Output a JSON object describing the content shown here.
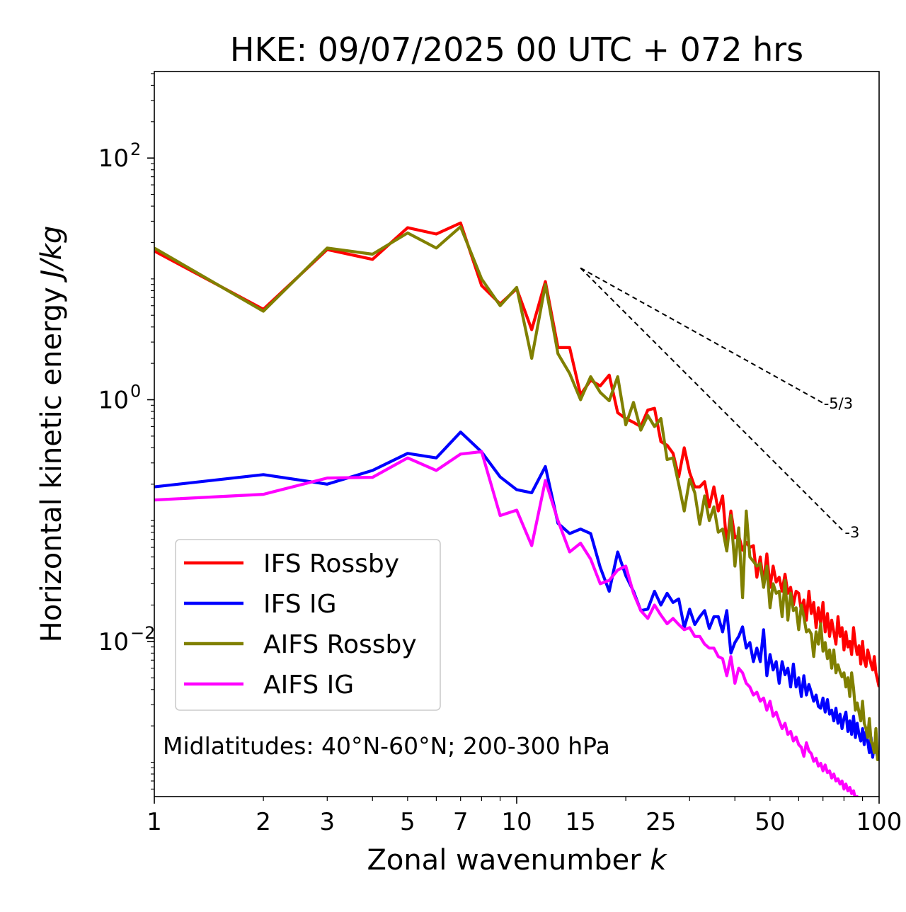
{
  "chart_data": {
    "type": "line",
    "title": "HKE: 09/07/2025 00 UTC + 072 hrs",
    "xlabel_main": "Zonal wavenumber ",
    "xlabel_var": "k",
    "ylabel_main": "Horizontal kinetic energy ",
    "ylabel_unit": "J/kg",
    "xscale": "log",
    "yscale": "log",
    "xlim": [
      1,
      100
    ],
    "ylim": [
      0.00052,
      520
    ],
    "x_ticks": [
      {
        "value": 1,
        "label": "1"
      },
      {
        "value": 2,
        "label": "2"
      },
      {
        "value": 3,
        "label": "3"
      },
      {
        "value": 5,
        "label": "5"
      },
      {
        "value": 7,
        "label": "7"
      },
      {
        "value": 10,
        "label": "10"
      },
      {
        "value": 15,
        "label": "15"
      },
      {
        "value": 25,
        "label": "25"
      },
      {
        "value": 50,
        "label": "50"
      },
      {
        "value": 100,
        "label": "100"
      }
    ],
    "y_ticks": [
      {
        "value": 0.01,
        "base": "10",
        "exp": "−2"
      },
      {
        "value": 1,
        "base": "10",
        "exp": "0"
      },
      {
        "value": 100,
        "base": "10",
        "exp": "2"
      }
    ],
    "annotation": "Midlatitudes: 40°N-60°N; 200-300 hPa",
    "legend_position": "lower-left",
    "series": [
      {
        "name": "IFS Rossby",
        "color": "#ff0000",
        "x": [
          1,
          2,
          3,
          4,
          5,
          6,
          7,
          8,
          9,
          10,
          11,
          12,
          13,
          14,
          15,
          16,
          17,
          18,
          19,
          20,
          21,
          22,
          23,
          24,
          25,
          26,
          27,
          28,
          29,
          30,
          31,
          32,
          33,
          34,
          35,
          36,
          37,
          38,
          39,
          40,
          41,
          42,
          43,
          44,
          45,
          46,
          47,
          48,
          49,
          50,
          51,
          52,
          53,
          54,
          55,
          56,
          57,
          58,
          59,
          60,
          61,
          62,
          63,
          64,
          65,
          66,
          67,
          68,
          69,
          70,
          71,
          72,
          73,
          74,
          75,
          76,
          77,
          78,
          79,
          80,
          81,
          82,
          83,
          84,
          85,
          86,
          87,
          88,
          89,
          90,
          91,
          92,
          93,
          94,
          95,
          96,
          97,
          98,
          99,
          100
        ],
        "values": [
          17,
          5.6,
          17.5,
          14.5,
          26.5,
          23.5,
          29,
          8.8,
          6.2,
          8.3,
          3.8,
          9.5,
          2.7,
          2.7,
          1.1,
          1.45,
          1.3,
          1.6,
          0.78,
          0.7,
          0.65,
          0.6,
          0.82,
          0.85,
          0.45,
          0.42,
          0.36,
          0.23,
          0.4,
          0.25,
          0.19,
          0.19,
          0.21,
          0.13,
          0.19,
          0.12,
          0.16,
          0.063,
          0.12,
          0.072,
          0.075,
          0.057,
          0.066,
          0.06,
          0.062,
          0.034,
          0.05,
          0.03,
          0.053,
          0.028,
          0.042,
          0.031,
          0.034,
          0.026,
          0.036,
          0.025,
          0.028,
          0.02,
          0.026,
          0.025,
          0.018,
          0.022,
          0.015,
          0.026,
          0.017,
          0.021,
          0.013,
          0.019,
          0.014,
          0.021,
          0.012,
          0.017,
          0.011,
          0.015,
          0.012,
          0.0095,
          0.016,
          0.011,
          0.013,
          0.0085,
          0.012,
          0.009,
          0.01,
          0.0078,
          0.013,
          0.0095,
          0.0078,
          0.0092,
          0.0065,
          0.01,
          0.007,
          0.0062,
          0.0085,
          0.0075,
          0.0065,
          0.0058,
          0.0075,
          0.0055,
          0.0048,
          0.0042
        ]
      },
      {
        "name": "IFS IG",
        "color": "#0000ff",
        "x": [
          1,
          2,
          3,
          4,
          5,
          6,
          7,
          8,
          9,
          10,
          11,
          12,
          13,
          14,
          15,
          16,
          17,
          18,
          19,
          20,
          21,
          22,
          23,
          24,
          25,
          26,
          27,
          28,
          29,
          30,
          31,
          32,
          33,
          34,
          35,
          36,
          37,
          38,
          39,
          40,
          41,
          42,
          43,
          44,
          45,
          46,
          47,
          48,
          49,
          50,
          51,
          52,
          53,
          54,
          55,
          56,
          57,
          58,
          59,
          60,
          61,
          62,
          63,
          64,
          65,
          66,
          67,
          68,
          69,
          70,
          71,
          72,
          73,
          74,
          75,
          76,
          77,
          78,
          79,
          80,
          81,
          82,
          83,
          84,
          85,
          86,
          87,
          88,
          89,
          90,
          91,
          92,
          93,
          94,
          95,
          96,
          97,
          98,
          99,
          100
        ],
        "values": [
          0.19,
          0.24,
          0.2,
          0.26,
          0.36,
          0.33,
          0.54,
          0.37,
          0.23,
          0.18,
          0.17,
          0.28,
          0.095,
          0.078,
          0.085,
          0.078,
          0.041,
          0.026,
          0.055,
          0.035,
          0.026,
          0.018,
          0.0185,
          0.026,
          0.02,
          0.025,
          0.021,
          0.0225,
          0.013,
          0.0185,
          0.0138,
          0.016,
          0.018,
          0.0128,
          0.016,
          0.016,
          0.012,
          0.018,
          0.008,
          0.0098,
          0.011,
          0.0132,
          0.0088,
          0.0098,
          0.0068,
          0.0088,
          0.0068,
          0.0125,
          0.0052,
          0.0078,
          0.0058,
          0.0068,
          0.0045,
          0.0068,
          0.0053,
          0.006,
          0.0042,
          0.0065,
          0.0042,
          0.005,
          0.0035,
          0.0052,
          0.0036,
          0.0044,
          0.0038,
          0.0032,
          0.0036,
          0.0029,
          0.0028,
          0.0034,
          0.0026,
          0.0033,
          0.0025,
          0.0027,
          0.0022,
          0.0028,
          0.0021,
          0.0025,
          0.0019,
          0.0023,
          0.0026,
          0.0018,
          0.0022,
          0.0017,
          0.0024,
          0.0016,
          0.0021,
          0.0017,
          0.0015,
          0.0019,
          0.0014,
          0.0018,
          0.0015,
          0.0012,
          0.0016,
          0.0011,
          0.0014,
          0.0013,
          0.0011,
          0.0012
        ]
      },
      {
        "name": "AIFS Rossby",
        "color": "#808000",
        "x": [
          1,
          2,
          3,
          4,
          5,
          6,
          7,
          8,
          9,
          10,
          11,
          12,
          13,
          14,
          15,
          16,
          17,
          18,
          19,
          20,
          21,
          22,
          23,
          24,
          25,
          26,
          27,
          28,
          29,
          30,
          31,
          32,
          33,
          34,
          35,
          36,
          37,
          38,
          39,
          40,
          41,
          42,
          43,
          44,
          45,
          46,
          47,
          48,
          49,
          50,
          51,
          52,
          53,
          54,
          55,
          56,
          57,
          58,
          59,
          60,
          61,
          62,
          63,
          64,
          65,
          66,
          67,
          68,
          69,
          70,
          71,
          72,
          73,
          74,
          75,
          76,
          77,
          78,
          79,
          80,
          81,
          82,
          83,
          84,
          85,
          86,
          87,
          88,
          89,
          90,
          91,
          92,
          93,
          94,
          95,
          96,
          97,
          98,
          99,
          100
        ],
        "values": [
          18,
          5.4,
          18,
          16,
          24,
          18,
          27,
          10,
          6,
          8.5,
          2.2,
          9,
          2.4,
          1.65,
          1,
          1.55,
          1.15,
          0.98,
          1.55,
          0.62,
          0.95,
          0.56,
          0.74,
          0.6,
          0.7,
          0.32,
          0.33,
          0.2,
          0.12,
          0.22,
          0.17,
          0.093,
          0.16,
          0.1,
          0.13,
          0.08,
          0.085,
          0.056,
          0.11,
          0.042,
          0.087,
          0.023,
          0.12,
          0.05,
          0.046,
          0.042,
          0.044,
          0.028,
          0.042,
          0.019,
          0.03,
          0.025,
          0.026,
          0.016,
          0.032,
          0.015,
          0.025,
          0.018,
          0.019,
          0.0125,
          0.02,
          0.016,
          0.012,
          0.0125,
          0.0115,
          0.0075,
          0.012,
          0.0095,
          0.014,
          0.0083,
          0.0098,
          0.0072,
          0.0085,
          0.006,
          0.0085,
          0.0055,
          0.0064,
          0.0056,
          0.0051,
          0.0055,
          0.0042,
          0.005,
          0.0035,
          0.0055,
          0.0041,
          0.0027,
          0.0031,
          0.0026,
          0.0022,
          0.0032,
          0.0021,
          0.0019,
          0.0016,
          0.0023,
          0.0015,
          0.0014,
          0.0012,
          0.0019,
          0.00105,
          0.00125
        ]
      },
      {
        "name": "AIFS IG",
        "color": "#ff00ff",
        "x": [
          1,
          2,
          3,
          4,
          5,
          6,
          7,
          8,
          9,
          10,
          11,
          12,
          13,
          14,
          15,
          16,
          17,
          18,
          19,
          20,
          21,
          22,
          23,
          24,
          25,
          26,
          27,
          28,
          29,
          30,
          31,
          32,
          33,
          34,
          35,
          36,
          37,
          38,
          39,
          40,
          41,
          42,
          43,
          44,
          45,
          46,
          47,
          48,
          49,
          50,
          51,
          52,
          53,
          54,
          55,
          56,
          57,
          58,
          59,
          60,
          61,
          62,
          63,
          64,
          65,
          66,
          67,
          68,
          69,
          70,
          71,
          72,
          73,
          74,
          75,
          76,
          77,
          78,
          79,
          80,
          81,
          82,
          83,
          84,
          85,
          86,
          87,
          88,
          89,
          90,
          91,
          92,
          93,
          94,
          95,
          96,
          97,
          98,
          99,
          100
        ],
        "values": [
          0.148,
          0.165,
          0.225,
          0.228,
          0.33,
          0.26,
          0.355,
          0.372,
          0.11,
          0.122,
          0.062,
          0.215,
          0.1,
          0.055,
          0.065,
          0.048,
          0.03,
          0.032,
          0.039,
          0.042,
          0.025,
          0.018,
          0.0155,
          0.02,
          0.0165,
          0.014,
          0.0155,
          0.0138,
          0.0125,
          0.013,
          0.011,
          0.011,
          0.0095,
          0.0088,
          0.0088,
          0.0075,
          0.0072,
          0.0052,
          0.0075,
          0.0045,
          0.006,
          0.0055,
          0.0045,
          0.0042,
          0.0036,
          0.0038,
          0.0032,
          0.0034,
          0.0027,
          0.0032,
          0.0024,
          0.0026,
          0.0022,
          0.0019,
          0.0021,
          0.0017,
          0.0018,
          0.0015,
          0.00162,
          0.0014,
          0.00133,
          0.00112,
          0.00145,
          0.00124,
          0.00118,
          0.00102,
          0.00108,
          0.00093,
          0.00098,
          0.00085,
          0.00095,
          0.00082,
          0.00085,
          0.00074,
          0.0008,
          0.0007,
          0.00073,
          0.00066,
          0.0007,
          0.0006,
          0.00066,
          0.00058,
          0.00062,
          0.00055,
          0.00058,
          0.0005,
          0.00052,
          0.00048,
          0.0005,
          0.00045,
          0.00047,
          0.00043,
          0.00045,
          0.0004,
          0.00042,
          0.00038,
          0.00039,
          0.00036,
          0.00037,
          0.00034
        ]
      }
    ],
    "reference_lines": [
      {
        "label": "-5/3",
        "x": [
          15,
          70
        ],
        "y": [
          12.3,
          0.94
        ]
      },
      {
        "label": "-3",
        "x": [
          15,
          80
        ],
        "y": [
          12.3,
          0.081
        ]
      }
    ]
  }
}
